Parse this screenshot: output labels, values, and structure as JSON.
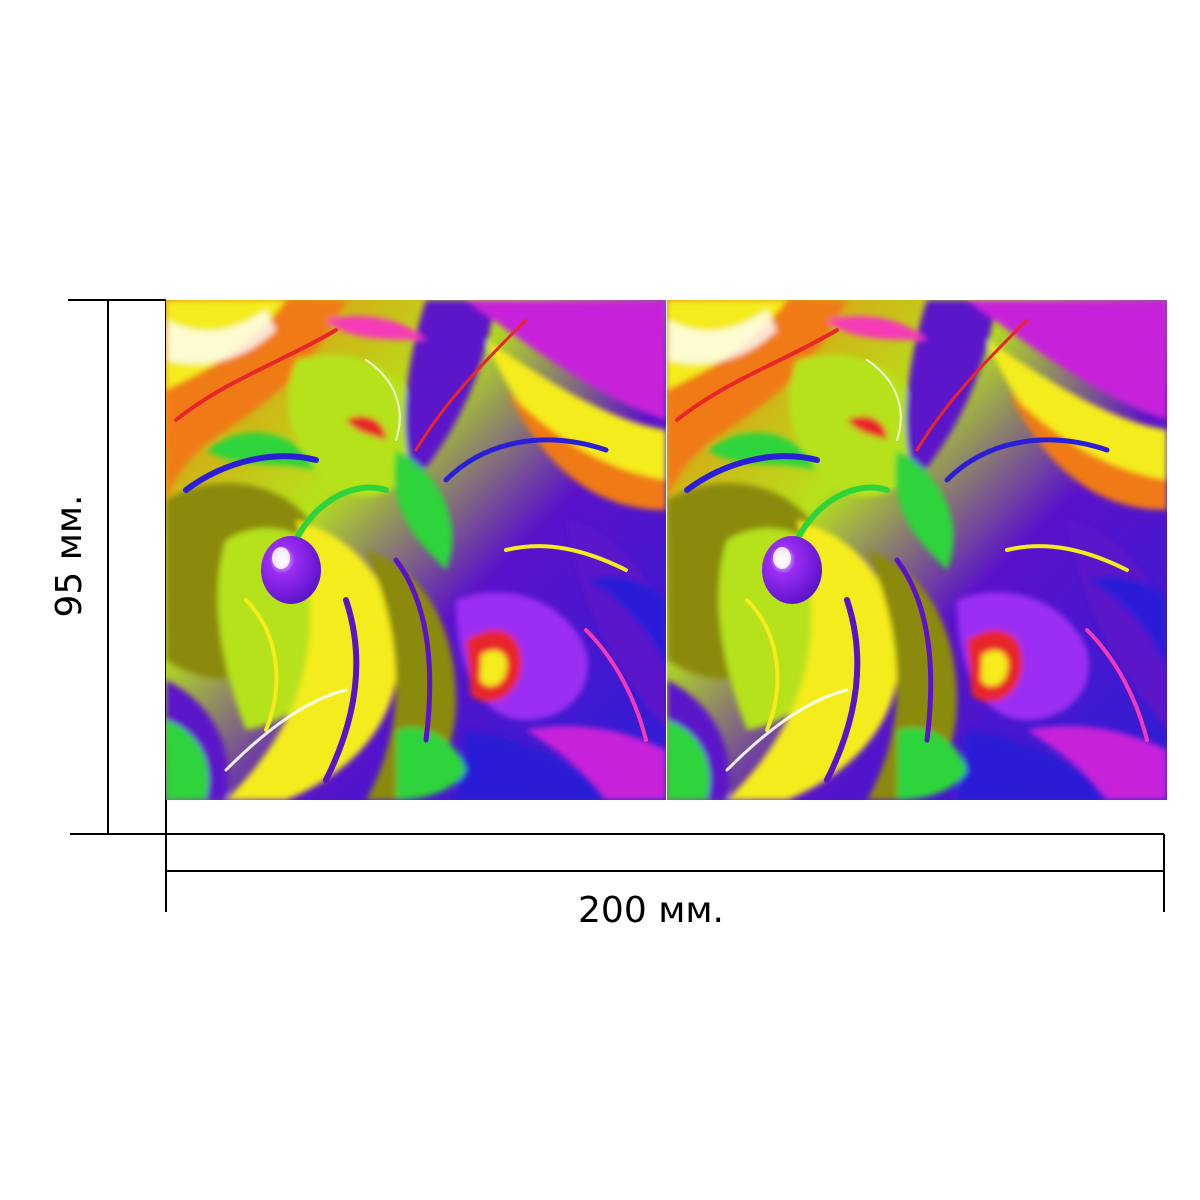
{
  "dimensions": {
    "width_label": "200 мм.",
    "height_label": "95 мм."
  },
  "pattern": {
    "name": "psychedelic-swirl",
    "colors": {
      "purple": "#5b12c9",
      "violet": "#9b2df2",
      "blue": "#2a1fd6",
      "green": "#2fd43a",
      "lime": "#b6e21a",
      "yellow": "#f4ec1c",
      "olive": "#8b8a10",
      "orange": "#f07a14",
      "red": "#e8262a",
      "pink": "#f53ab8",
      "magenta": "#c724d9",
      "white": "#ffffff"
    }
  }
}
